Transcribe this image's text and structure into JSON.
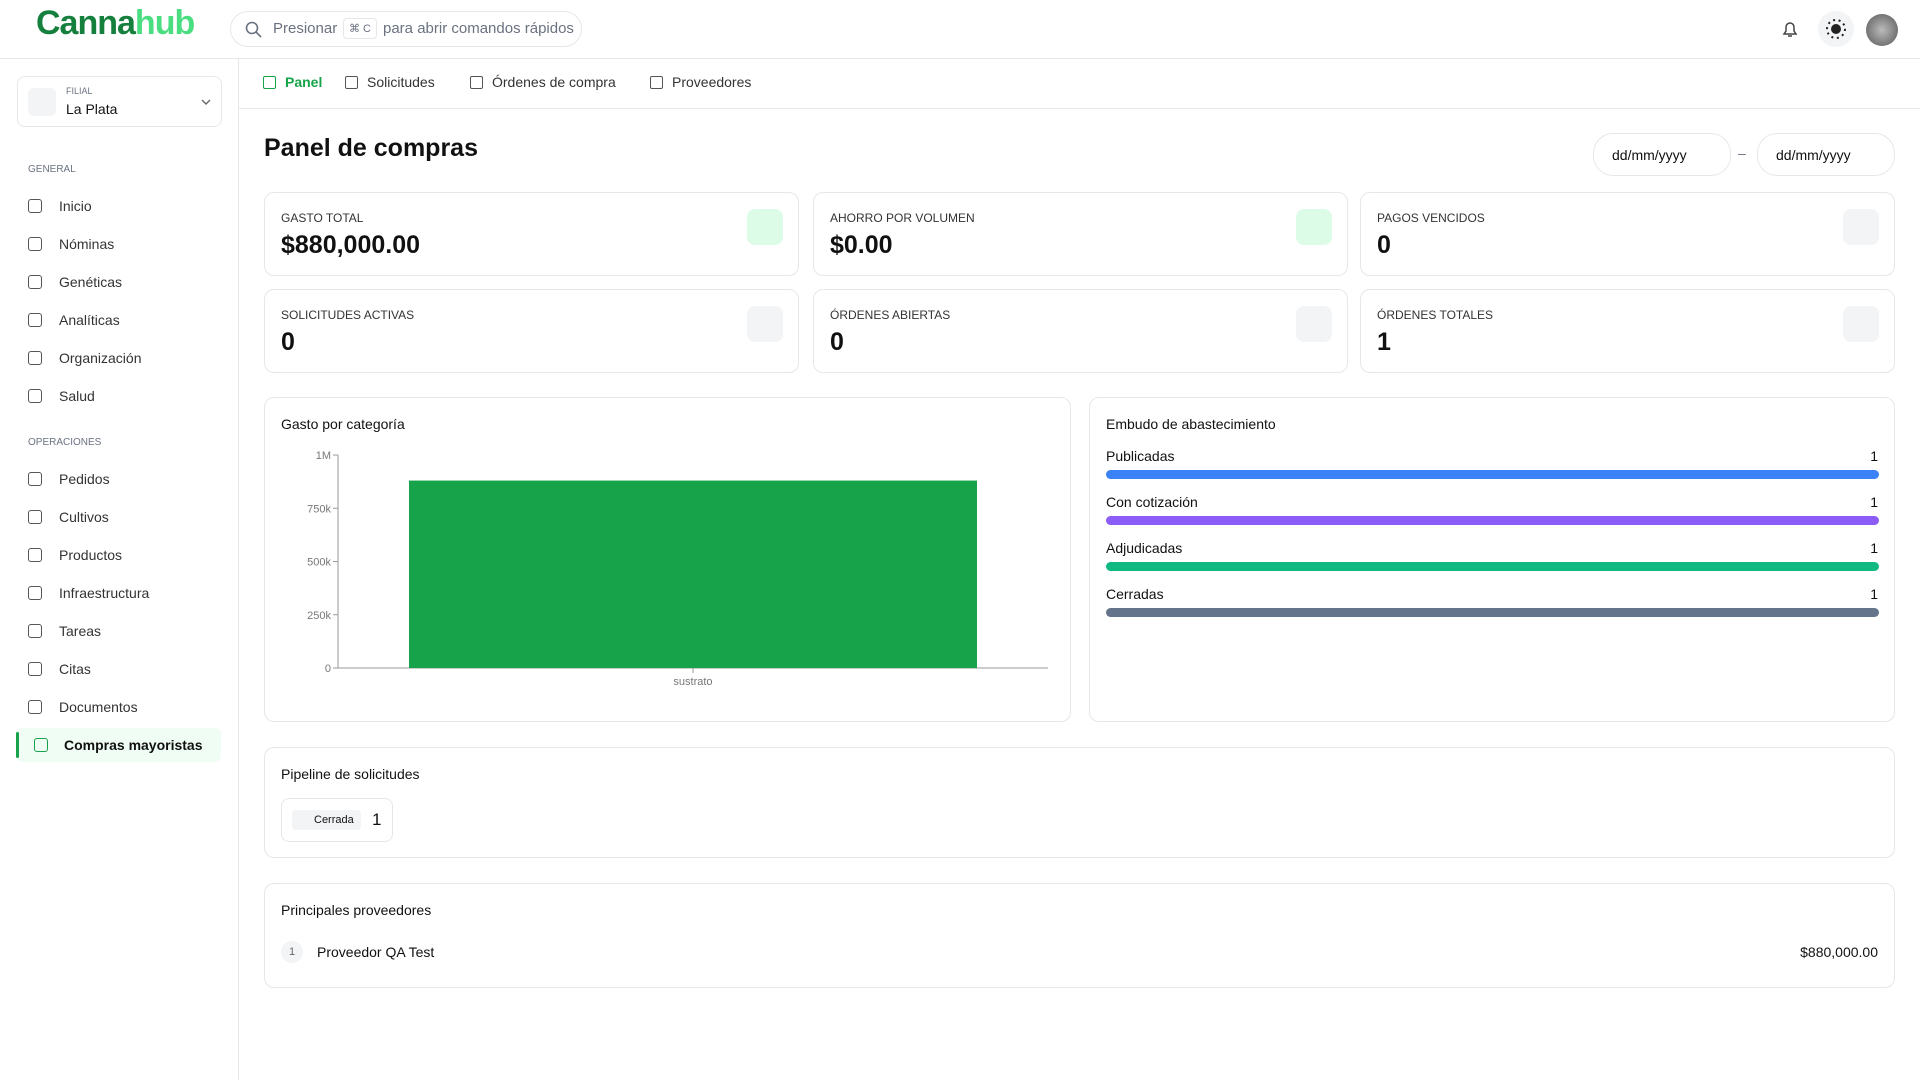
{
  "header": {
    "logo_a": "Canna",
    "logo_b": "hub",
    "search_pre": "Presionar",
    "search_key": "⌘ C",
    "search_post": "para abrir comandos rápidos"
  },
  "sidebar": {
    "branch_label": "FILIAL",
    "branch": "La Plata",
    "sections": [
      {
        "title": "GENERAL",
        "items": [
          "Inicio",
          "Nóminas",
          "Genéticas",
          "Analíticas",
          "Organización",
          "Salud"
        ]
      },
      {
        "title": "OPERACIONES",
        "items": [
          "Pedidos",
          "Cultivos",
          "Productos",
          "Infraestructura",
          "Tareas",
          "Citas",
          "Documentos",
          "Compras mayoristas"
        ]
      }
    ]
  },
  "tabs": [
    "Panel",
    "Solicitudes",
    "Órdenes de compra",
    "Proveedores"
  ],
  "page": {
    "title": "Panel de compras",
    "date_from": "dd/mm/yyyy",
    "date_sep": "–",
    "date_to": "dd/mm/yyyy"
  },
  "stats": [
    {
      "label": "GASTO TOTAL",
      "value": "$880,000.00"
    },
    {
      "label": "AHORRO POR VOLUMEN",
      "value": "$0.00"
    },
    {
      "label": "PAGOS VENCIDOS",
      "value": 0
    },
    {
      "label": "SOLICITUDES ACTIVAS",
      "value": 0
    },
    {
      "label": "ÓRDENES ABIERTAS",
      "value": 0
    },
    {
      "label": "ÓRDENES TOTALES",
      "value": 1
    }
  ],
  "chart_data": {
    "type": "bar",
    "title": "Gasto por categoría",
    "categories": [
      "sustrato"
    ],
    "values": [
      880000
    ],
    "color": "#16a34a",
    "ylim": [
      0,
      1000000
    ],
    "yticks": [
      {
        "value": 0,
        "label": "0"
      },
      {
        "value": 250000,
        "label": "250k"
      },
      {
        "value": 500000,
        "label": "500k"
      },
      {
        "value": 750000,
        "label": "750k"
      },
      {
        "value": 1000000,
        "label": "1M"
      }
    ]
  },
  "funnel": {
    "title": "Embudo de abastecimiento",
    "stages": [
      {
        "name": "Publicadas",
        "value": 1,
        "color": "#3b82f6"
      },
      {
        "name": "Con cotización",
        "value": 1,
        "color": "#8b5cf6"
      },
      {
        "name": "Adjudicadas",
        "value": 1,
        "color": "#10b981"
      },
      {
        "name": "Cerradas",
        "value": 1,
        "color": "#64748b"
      }
    ]
  },
  "pipeline": {
    "title": "Pipeline de solicitudes",
    "stages": [
      {
        "name": "Cerrada",
        "count": 1
      }
    ]
  },
  "suppliers": {
    "title": "Principales proveedores",
    "rows": [
      {
        "rank": 1,
        "name": "Proveedor QA Test",
        "amount": "$880,000.00"
      }
    ]
  }
}
